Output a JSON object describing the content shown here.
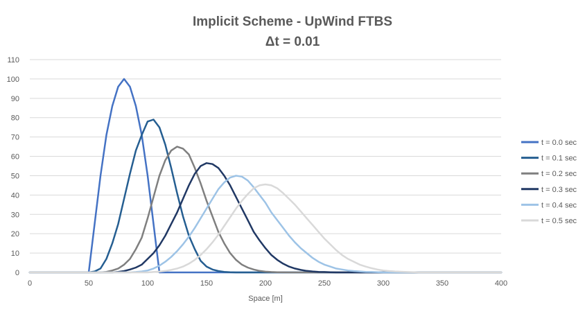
{
  "chart_data": {
    "type": "line",
    "title": [
      "Implicit Scheme - UpWind FTBS",
      "Δt = 0.01"
    ],
    "xlabel": "Space [m]",
    "ylabel": "",
    "xlim": [
      0,
      400
    ],
    "ylim": [
      0,
      110
    ],
    "xticks": [
      0,
      50,
      100,
      150,
      200,
      250,
      300,
      350,
      400
    ],
    "yticks": [
      0,
      10,
      20,
      30,
      40,
      50,
      60,
      70,
      80,
      90,
      100,
      110
    ],
    "grid": "horizontal",
    "legend_position": "right",
    "series": [
      {
        "name": "t = 0.0 sec",
        "color": "#4472C4",
        "x": [
          0,
          45,
          50,
          55,
          60,
          65,
          70,
          75,
          80,
          85,
          90,
          95,
          100,
          105,
          110,
          115,
          400
        ],
        "y": [
          0,
          0,
          0,
          25,
          50,
          71,
          86,
          96,
          100,
          96,
          86,
          71,
          50,
          25,
          0,
          0,
          0
        ]
      },
      {
        "name": "t = 0.1 sec",
        "color": "#255E91",
        "x": [
          0,
          50,
          55,
          60,
          65,
          70,
          75,
          80,
          85,
          90,
          95,
          100,
          105,
          110,
          115,
          120,
          125,
          130,
          135,
          140,
          145,
          150,
          155,
          160,
          165,
          170,
          175,
          180,
          190,
          400
        ],
        "y": [
          0,
          0,
          0.5,
          2,
          7,
          15,
          25,
          38,
          51,
          63,
          71,
          78,
          79,
          75,
          66,
          54,
          41,
          29,
          19,
          12,
          6,
          3,
          1.5,
          0.7,
          0.3,
          0.1,
          0,
          0,
          0,
          0
        ]
      },
      {
        "name": "t = 0.2 sec",
        "color": "#7F7F7F",
        "x": [
          0,
          55,
          60,
          65,
          70,
          75,
          80,
          85,
          90,
          95,
          100,
          105,
          110,
          115,
          120,
          125,
          130,
          135,
          140,
          145,
          150,
          155,
          160,
          165,
          170,
          175,
          180,
          185,
          190,
          195,
          200,
          205,
          210,
          220,
          230,
          240,
          400
        ],
        "y": [
          0,
          0,
          0,
          0.3,
          1,
          2,
          4,
          7,
          12,
          18,
          28,
          39,
          50,
          58,
          63,
          65,
          64,
          61,
          54,
          46,
          37,
          29,
          21,
          15,
          10,
          6.5,
          4,
          2.5,
          1.5,
          0.8,
          0.4,
          0.2,
          0.1,
          0,
          0,
          0,
          0
        ]
      },
      {
        "name": "t = 0.3 sec",
        "color": "#203864",
        "x": [
          0,
          70,
          75,
          80,
          85,
          90,
          95,
          100,
          105,
          110,
          115,
          120,
          125,
          130,
          135,
          140,
          145,
          150,
          155,
          160,
          165,
          170,
          175,
          180,
          185,
          190,
          195,
          200,
          205,
          210,
          215,
          220,
          225,
          230,
          235,
          240,
          245,
          250,
          255,
          260,
          270,
          280,
          400
        ],
        "y": [
          0,
          0,
          0.3,
          0.7,
          1.5,
          2.5,
          4,
          7,
          10,
          14,
          19,
          25,
          31,
          38,
          45,
          51,
          55,
          56.5,
          56,
          54,
          50,
          45,
          39,
          33,
          27,
          21,
          16.5,
          12.5,
          9,
          6.5,
          4.5,
          3,
          2,
          1.3,
          0.8,
          0.5,
          0.3,
          0.2,
          0.1,
          0,
          0,
          0,
          0
        ]
      },
      {
        "name": "t = 0.4 sec",
        "color": "#9DC3E6",
        "x": [
          0,
          85,
          90,
          95,
          100,
          105,
          110,
          115,
          120,
          125,
          130,
          135,
          140,
          145,
          150,
          155,
          160,
          165,
          170,
          175,
          180,
          185,
          190,
          195,
          200,
          205,
          210,
          215,
          220,
          225,
          230,
          235,
          240,
          245,
          250,
          255,
          260,
          265,
          270,
          275,
          280,
          285,
          290,
          300,
          400
        ],
        "y": [
          0,
          0,
          0.2,
          0.5,
          1,
          2,
          3.5,
          5.5,
          8,
          11,
          14.5,
          18.5,
          23,
          28,
          33,
          38,
          43,
          46.5,
          49,
          50,
          49.5,
          47.5,
          44,
          40,
          36,
          31,
          27,
          23,
          19,
          15.5,
          12.5,
          10,
          7.5,
          5.5,
          4,
          3,
          2,
          1.5,
          1,
          0.7,
          0.5,
          0.3,
          0.2,
          0,
          0
        ]
      },
      {
        "name": "t = 0.5 sec",
        "color": "#D9D9D9",
        "x": [
          0,
          100,
          105,
          110,
          115,
          120,
          125,
          130,
          135,
          140,
          145,
          150,
          155,
          160,
          165,
          170,
          175,
          180,
          185,
          190,
          195,
          200,
          205,
          210,
          215,
          220,
          225,
          230,
          235,
          240,
          245,
          250,
          255,
          260,
          265,
          270,
          275,
          280,
          285,
          290,
          295,
          300,
          305,
          310,
          320,
          330,
          400
        ],
        "y": [
          0,
          0,
          0.2,
          0.4,
          0.8,
          1.3,
          2,
          3,
          4.5,
          6.5,
          9,
          12,
          15.5,
          19.5,
          24,
          28.5,
          33,
          37,
          40.5,
          43.5,
          45,
          45.5,
          45,
          43.5,
          41,
          38,
          35,
          31.5,
          28,
          24.5,
          21,
          17.5,
          14.5,
          11.5,
          9,
          7,
          5.5,
          4,
          3,
          2.2,
          1.5,
          1,
          0.7,
          0.5,
          0.2,
          0,
          0
        ]
      }
    ]
  }
}
